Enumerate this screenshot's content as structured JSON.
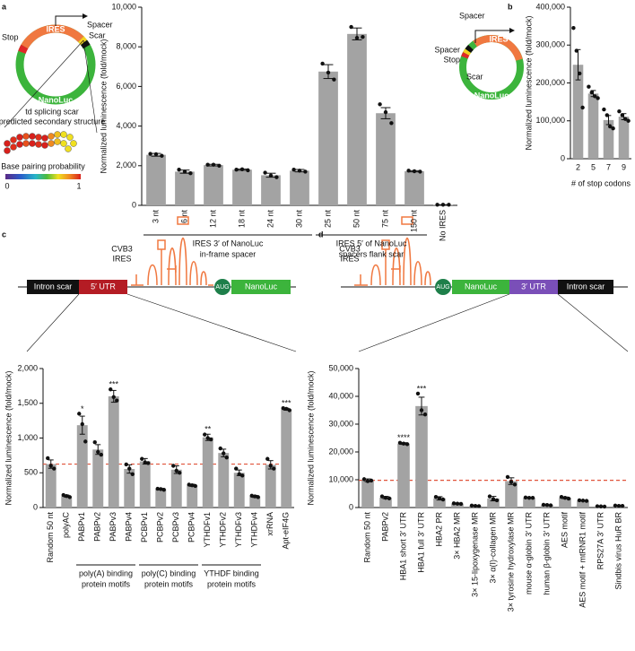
{
  "chart_data": [
    {
      "type": "bar",
      "panel": "a",
      "ylabel": "Normalized luminescence (fold/mock)",
      "color": "#a3a3a3",
      "categories": [
        "3 nt",
        "6 nt",
        "12 nt",
        "18 nt",
        "24 nt",
        "30 nt",
        "25 nt",
        "50 nt",
        "75 nt",
        "150 nt",
        "No IRES"
      ],
      "values": [
        2550,
        1700,
        2030,
        1800,
        1520,
        1750,
        6750,
        8650,
        4650,
        1720,
        30
      ],
      "errors": [
        70,
        80,
        40,
        30,
        100,
        60,
        350,
        300,
        280,
        30,
        0
      ],
      "points": [
        [
          2600,
          2580,
          2500
        ],
        [
          1800,
          1700,
          1620
        ],
        [
          2050,
          2050,
          2000
        ],
        [
          1800,
          1820,
          1770
        ],
        [
          1650,
          1500,
          1420
        ],
        [
          1800,
          1750,
          1700
        ],
        [
          7150,
          6700,
          6350
        ],
        [
          9000,
          8450,
          8500
        ],
        [
          5100,
          4700,
          4150
        ],
        [
          1750,
          1720,
          1700
        ],
        [
          30,
          30,
          30
        ]
      ],
      "groups": [
        [
          "IRES 3′ of NanoLuc",
          "in-frame spacer"
        ],
        [
          "IRES 5′ of NanoLuc",
          "spacers flank scar"
        ]
      ],
      "ylim": [
        0,
        10000
      ],
      "yticks": [
        0,
        {
          "value": 2000,
          "label": "2,000"
        },
        {
          "value": 4000,
          "label": "4,000"
        },
        {
          "value": 6000,
          "label": "6,000"
        },
        {
          "value": 8000,
          "label": "8,000"
        },
        {
          "value": 10000,
          "label": "10,000"
        }
      ]
    },
    {
      "type": "bar",
      "panel": "b",
      "ylabel": "Normalized luminescence (fold/mock)",
      "xlabel": "# of stop codons",
      "color": "#a3a3a3",
      "categories": [
        "2",
        "5",
        "7",
        "9"
      ],
      "values": [
        248000,
        172000,
        102000,
        111000
      ],
      "errors": [
        40000,
        8000,
        12000,
        8000
      ],
      "points": [
        [
          345000,
          285000,
          225000,
          135000
        ],
        [
          190000,
          175000,
          165000,
          160000
        ],
        [
          130000,
          115000,
          85000,
          80000
        ],
        [
          125000,
          115000,
          105000,
          100000
        ]
      ],
      "ylim": [
        0,
        400000
      ],
      "yticks": [
        0,
        {
          "value": 100000,
          "label": "100,000"
        },
        {
          "value": 200000,
          "label": "200,000"
        },
        {
          "value": 300000,
          "label": "300,000"
        },
        {
          "value": 400000,
          "label": "400,000"
        }
      ]
    },
    {
      "type": "bar",
      "panel": "c",
      "ylabel": "Normalized luminescence (fold/mock)",
      "color": "#a3a3a3",
      "categories": [
        "Random 50 nt",
        "polyAC",
        "PABPv1",
        "PABPv2",
        "PABPv3",
        "PABPv4",
        "PCBPv1",
        "PCBPv2",
        "PCBPv3",
        "PCBPv4",
        "YTHDFv1",
        "YTHDFv2",
        "YTHDFv3",
        "YTHDFv4",
        "xrRNA",
        "Apt-eIF4G"
      ],
      "values": [
        625,
        165,
        1185,
        835,
        1600,
        555,
        665,
        265,
        545,
        320,
        1010,
        785,
        500,
        160,
        615,
        1415
      ],
      "errors": [
        60,
        15,
        130,
        70,
        85,
        60,
        40,
        10,
        55,
        15,
        45,
        55,
        40,
        15,
        60,
        15
      ],
      "points": [
        [
          710,
          600,
          560
        ],
        [
          180,
          165,
          150
        ],
        [
          1350,
          1200,
          950
        ],
        [
          940,
          800,
          760
        ],
        [
          1700,
          1590,
          1540
        ],
        [
          620,
          560,
          480
        ],
        [
          700,
          650,
          640
        ],
        [
          270,
          265,
          255
        ],
        [
          600,
          530,
          500
        ],
        [
          330,
          320,
          310
        ],
        [
          1050,
          1000,
          980
        ],
        [
          850,
          780,
          720
        ],
        [
          560,
          480,
          460
        ],
        [
          170,
          160,
          150
        ],
        [
          700,
          600,
          560
        ],
        [
          1430,
          1420,
          1400
        ]
      ],
      "significance": [
        null,
        null,
        "*",
        null,
        "***",
        null,
        null,
        null,
        null,
        null,
        "**",
        null,
        null,
        null,
        null,
        "***"
      ],
      "groups": [
        [
          "poly(A) binding",
          "protein motifs"
        ],
        [
          "poly(C) binding",
          "protein motifs"
        ],
        [
          "YTHDF binding",
          "protein motifs"
        ]
      ],
      "reference_line": 625,
      "reference_color": "#e0533a",
      "ylim": [
        0,
        2000
      ],
      "yticks": [
        0,
        500,
        {
          "value": 1000,
          "label": "1,000"
        },
        {
          "value": 1500,
          "label": "1,500"
        },
        {
          "value": 2000,
          "label": "2,000"
        }
      ]
    },
    {
      "type": "bar",
      "panel": "d",
      "ylabel": "Normalized luminescence (fold/mock)",
      "color": "#a3a3a3",
      "categories": [
        "Random 50 nt",
        "PABPv2",
        "HBA1 short 3′ UTR",
        "HBA1 full 3′ UTR",
        "HBA2 PR",
        "3× HBA2 MR",
        "3× 15-lipoxygenase MR",
        "3× α(I)-collagen MR",
        "3× tyrosine hydroxylase MR",
        "mouse α-globin 3′ UTR",
        "human β-globin 3′ UTR",
        "AES motif",
        "AES motif + mtRNR1 motif",
        "RPS27A 3′ UTR",
        "Sindbis virus HuR BR"
      ],
      "values": [
        9800,
        3600,
        23000,
        36500,
        3300,
        1400,
        600,
        3200,
        9500,
        3500,
        900,
        3500,
        2500,
        400,
        600
      ],
      "errors": [
        500,
        400,
        300,
        3200,
        600,
        200,
        100,
        800,
        1200,
        100,
        100,
        300,
        100,
        50,
        100
      ],
      "points": [
        [
          10200,
          9500,
          9700
        ],
        [
          4000,
          3500,
          3300
        ],
        [
          23300,
          23000,
          22800
        ],
        [
          41000,
          35000,
          33500
        ],
        [
          3800,
          3300,
          2900
        ],
        [
          1500,
          1400,
          1300
        ],
        [
          700,
          600,
          500
        ],
        [
          4000,
          3000,
          2600
        ],
        [
          11000,
          9200,
          8300
        ],
        [
          3600,
          3500,
          3500
        ],
        [
          1000,
          900,
          800
        ],
        [
          3800,
          3500,
          3200
        ],
        [
          2600,
          2500,
          2400
        ],
        [
          450,
          400,
          350
        ],
        [
          700,
          600,
          600
        ]
      ],
      "significance": [
        null,
        null,
        "****",
        "***",
        null,
        null,
        null,
        null,
        null,
        null,
        null,
        null,
        null,
        null,
        null
      ],
      "reference_line": 9800,
      "reference_color": "#e0533a",
      "ylim": [
        0,
        50000
      ],
      "yticks": [
        0,
        {
          "value": 10000,
          "label": "10,000"
        },
        {
          "value": 20000,
          "label": "20,000"
        },
        {
          "value": 30000,
          "label": "30,000"
        },
        {
          "value": 40000,
          "label": "40,000"
        },
        {
          "value": 50000,
          "label": "50,000"
        }
      ]
    }
  ],
  "diagrams": {
    "a_vector": {
      "stop": "Stop",
      "ires": "IRES",
      "spacer": "Spacer",
      "scar": "Scar",
      "reporter": "NanoLuc"
    },
    "a_structure": {
      "title": [
        "td splicing scar",
        "predicted secondary structure"
      ],
      "colorbar_title": "Base pairing probability",
      "colorbar_min": 0,
      "colorbar_max": 1
    },
    "a_inset": {
      "spacer_top": "Spacer",
      "ires": "IRES",
      "spacer": "Spacer",
      "stop": "Stop",
      "scar": "Scar",
      "reporter": "NanoLuc"
    },
    "c_construct": {
      "intron": "Intron scar",
      "utr": "5′ UTR",
      "ires": [
        "CVB3",
        "IRES"
      ],
      "start": "AUG",
      "reporter": "NanoLuc"
    },
    "d_construct": {
      "ires": [
        "CVB3",
        "IRES"
      ],
      "start": "AUG",
      "reporter": "NanoLuc",
      "utr": "3′ UTR",
      "intron": "Intron scar"
    }
  }
}
